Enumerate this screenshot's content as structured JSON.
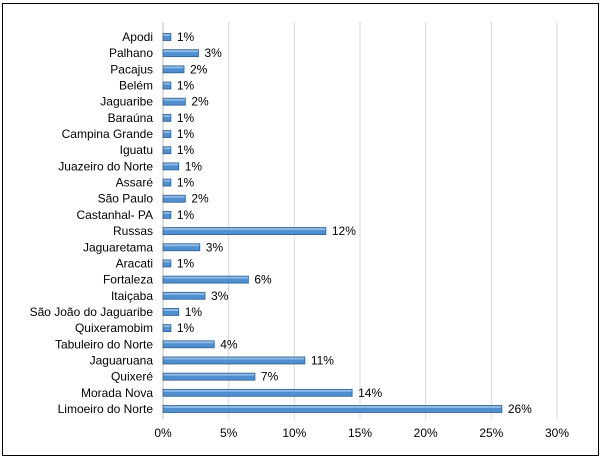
{
  "chart_data": {
    "type": "bar",
    "orientation": "horizontal",
    "title": "",
    "xlabel": "",
    "ylabel": "",
    "xlim": [
      0,
      30
    ],
    "x_ticks": [
      "0%",
      "5%",
      "10%",
      "15%",
      "20%",
      "25%",
      "30%"
    ],
    "grid": true,
    "legend": "none",
    "categories": [
      "Apodi",
      "Palhano",
      "Pacajus",
      "Belém",
      "Jaguaribe",
      "Baraúna",
      "Campina Grande",
      "Iguatu",
      "Juazeiro do Norte",
      "Assaré",
      "São Paulo",
      "Castanhal- PA",
      "Russas",
      "Jaguaretama",
      "Aracati",
      "Fortaleza",
      "Itaiçaba",
      "São João do Jaguaribe",
      "Quixeramobim",
      "Tabuleiro do Norte",
      "Jaguaruana",
      "Quixeré",
      "Morada Nova",
      "Limoeiro do Norte"
    ],
    "values": [
      0.6,
      2.7,
      1.6,
      0.6,
      1.7,
      0.6,
      0.6,
      0.6,
      1.2,
      0.6,
      1.7,
      0.6,
      12.4,
      2.8,
      0.6,
      6.5,
      3.2,
      1.2,
      0.6,
      3.9,
      10.8,
      7.0,
      14.4,
      25.8
    ],
    "data_labels": [
      "1%",
      "3%",
      "2%",
      "1%",
      "2%",
      "1%",
      "1%",
      "1%",
      "1%",
      "1%",
      "2%",
      "1%",
      "12%",
      "3%",
      "1%",
      "6%",
      "3%",
      "1%",
      "1%",
      "4%",
      "11%",
      "7%",
      "14%",
      "26%"
    ],
    "colors": {
      "bar": "#4F8FCF",
      "bar_edge": "#2E5E8E",
      "bar_top": "#8EBAE6",
      "grid": "#D9D9D9"
    }
  }
}
